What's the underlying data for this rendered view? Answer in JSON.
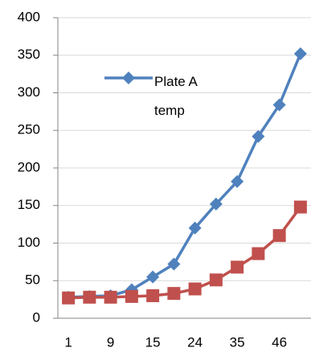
{
  "chart_data": {
    "type": "line",
    "categories": [
      "1",
      null,
      "9",
      null,
      "15",
      null,
      "24",
      null,
      "35",
      null,
      "46",
      null
    ],
    "series": [
      {
        "name": "Plate A temp",
        "color": "#4f81bd",
        "marker": "diamond",
        "values": [
          28,
          29,
          30,
          38,
          55,
          72,
          120,
          152,
          182,
          242,
          284,
          352
        ]
      },
      {
        "color": "#c0504d",
        "marker": "square",
        "values": [
          27,
          28,
          28,
          29,
          30,
          33,
          39,
          51,
          68,
          86,
          110,
          148
        ]
      }
    ],
    "ylim": [
      0,
      400
    ],
    "yticks": [
      0,
      50,
      100,
      150,
      200,
      250,
      300,
      350,
      400
    ],
    "grid": true
  }
}
